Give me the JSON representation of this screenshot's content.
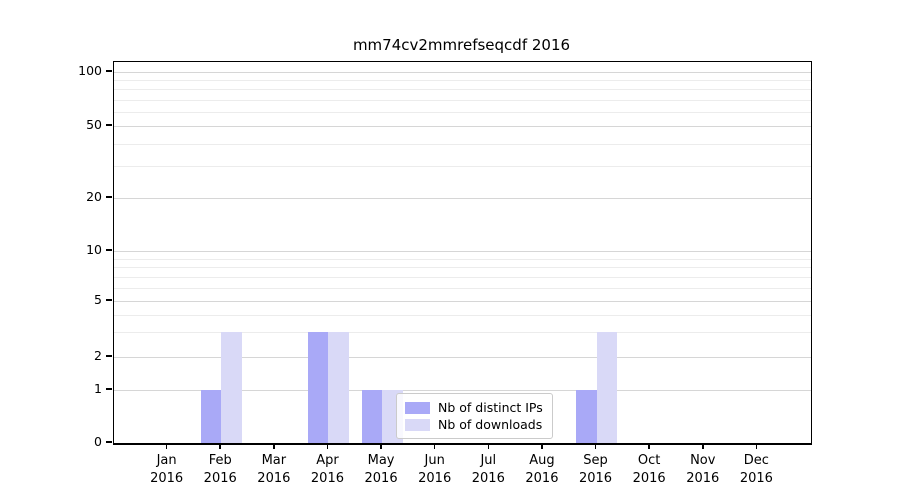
{
  "title": "mm74cv2mmrefseqcdf 2016",
  "chart_data": {
    "type": "bar",
    "title": "mm74cv2mmrefseqcdf 2016",
    "categories_month": [
      "Jan",
      "Feb",
      "Mar",
      "Apr",
      "May",
      "Jun",
      "Jul",
      "Aug",
      "Sep",
      "Oct",
      "Nov",
      "Dec"
    ],
    "year": "2016",
    "series": [
      {
        "name": "Nb of distinct IPs",
        "color": "#a9a9f7",
        "values": [
          0,
          1,
          0,
          3,
          1,
          0,
          0,
          0,
          1,
          0,
          0,
          0
        ]
      },
      {
        "name": "Nb of downloads",
        "color": "#d9d9f7",
        "values": [
          0,
          3,
          0,
          3,
          1,
          0,
          0,
          0,
          3,
          0,
          0,
          0
        ]
      }
    ],
    "y_axis": {
      "scale": "log-like",
      "tick_labels": [
        "0",
        "1",
        "2",
        "5",
        "10",
        "20",
        "50",
        "100"
      ],
      "tick_values": [
        0,
        1,
        2,
        5,
        10,
        20,
        50,
        100
      ],
      "minor_gridline_values": [
        3,
        4,
        6,
        7,
        8,
        9,
        30,
        40,
        60,
        70,
        80,
        90
      ]
    },
    "x_axis": {
      "tick_label_format": "Month over Year, two lines"
    },
    "legend": {
      "labels": [
        "Nb of distinct IPs",
        "Nb of downloads"
      ],
      "position": "lower center, inside plot"
    },
    "grid": "horizontal only",
    "colors": {
      "axis": "#000000",
      "major_grid": "#d6d6d6",
      "minor_grid": "#ececec",
      "background": "#ffffff",
      "bar_distinct_ips": "#a9a9f7",
      "bar_downloads": "#d9d9f7"
    }
  }
}
